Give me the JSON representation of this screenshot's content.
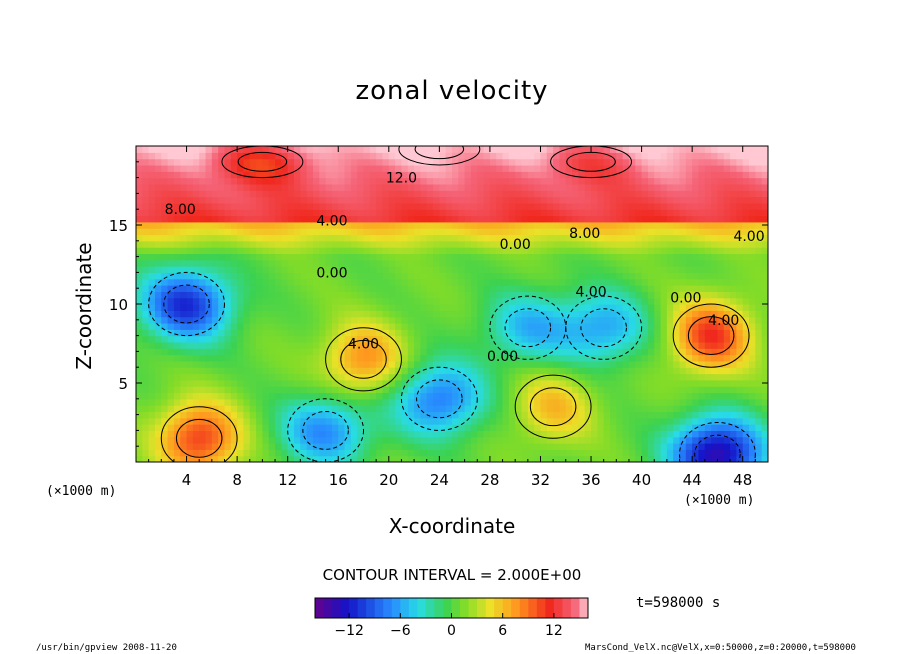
{
  "chart_data": {
    "type": "heatmap",
    "title": "zonal velocity",
    "xlabel": "X-coordinate",
    "ylabel": "Z-coordinate",
    "x_unit_label": "(×1000 m)",
    "xlim": [
      0,
      50
    ],
    "ylim": [
      0,
      20
    ],
    "x_ticks": [
      4,
      8,
      12,
      16,
      20,
      24,
      28,
      32,
      36,
      40,
      44,
      48
    ],
    "y_ticks": [
      5,
      10,
      15
    ],
    "contour_interval_label": "CONTOUR INTERVAL = 2.000E+00",
    "contour_interval": 2.0,
    "colorbar": {
      "min": -16,
      "max": 16,
      "tick_values": [
        -12,
        -6,
        0,
        6,
        12
      ],
      "tick_labels": [
        "−12",
        "−6",
        "0",
        "6",
        "12"
      ]
    },
    "contour_labels": [
      {
        "text": "12.0",
        "x": 21,
        "z": 18.0
      },
      {
        "text": "8.00",
        "x": 3.5,
        "z": 16.0
      },
      {
        "text": "4.00",
        "x": 15.5,
        "z": 15.3
      },
      {
        "text": "8.00",
        "x": 35.5,
        "z": 14.5
      },
      {
        "text": "4.00",
        "x": 48.5,
        "z": 14.3
      },
      {
        "text": "0.00",
        "x": 30,
        "z": 13.8
      },
      {
        "text": "0.00",
        "x": 15.5,
        "z": 12.0
      },
      {
        "text": "4.00",
        "x": 36,
        "z": 10.8
      },
      {
        "text": "0.00",
        "x": 43.5,
        "z": 10.4
      },
      {
        "text": "4.00",
        "x": 46.5,
        "z": 9.0
      },
      {
        "text": "4.00",
        "x": 18,
        "z": 7.5
      },
      {
        "text": "0.00",
        "x": 29,
        "z": 6.7
      }
    ],
    "features": [
      {
        "kind": "max",
        "x": 24,
        "z": 19.8,
        "value": 16
      },
      {
        "kind": "max",
        "x": 36,
        "z": 19.0,
        "value": 13
      },
      {
        "kind": "max",
        "x": 10,
        "z": 19.0,
        "value": 11
      },
      {
        "kind": "max",
        "x": 45.5,
        "z": 8.0,
        "value": 11
      },
      {
        "kind": "max",
        "x": 18,
        "z": 6.5,
        "value": 8
      },
      {
        "kind": "max",
        "x": 5,
        "z": 1.5,
        "value": 11
      },
      {
        "kind": "max",
        "x": 33,
        "z": 3.5,
        "value": 6
      },
      {
        "kind": "min",
        "x": 4,
        "z": 10.0,
        "value": -11
      },
      {
        "kind": "min",
        "x": 46,
        "z": 0.5,
        "value": -14
      },
      {
        "kind": "min",
        "x": 15,
        "z": 2.0,
        "value": -7
      },
      {
        "kind": "min",
        "x": 24,
        "z": 4.0,
        "value": -8
      },
      {
        "kind": "min",
        "x": 37,
        "z": 8.5,
        "value": -6
      },
      {
        "kind": "min",
        "x": 31,
        "z": 8.5,
        "value": -5
      }
    ]
  },
  "labels": {
    "title": "zonal velocity",
    "ylabel": "Z-coordinate",
    "xlabel": "X-coordinate",
    "x_unit_left": "(×1000 m)",
    "x_unit_right": "(×1000 m)",
    "contour_interval": "CONTOUR INTERVAL = 2.000E+00",
    "time": "t=598000 s",
    "footer_left": "/usr/bin/gpview  2008-11-20",
    "footer_right": "MarsCond_VelX.nc@VelX,x=0:50000,z=0:20000,t=598000"
  }
}
